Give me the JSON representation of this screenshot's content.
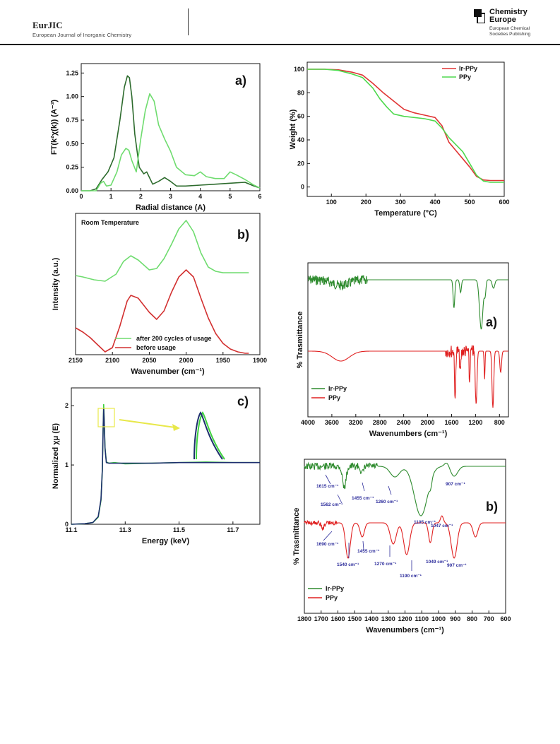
{
  "header": {
    "journal_title": "EurJIC",
    "journal_subtitle": "European Journal of Inorganic Chemistry",
    "publisher_name_line1": "Chemistry",
    "publisher_name_line2": "Europe",
    "publisher_sub_line1": "European Chemical",
    "publisher_sub_line2": "Societies Publishing"
  },
  "colors": {
    "dark_green": "#2d6b2d",
    "light_green": "#6fdc6f",
    "bright_green": "#3fd23f",
    "red": "#d23030",
    "navy": "#1e2f6e",
    "annot_blue": "#2a2a9a",
    "highlight_yellow": "#e8e84a"
  },
  "chart_data": [
    {
      "id": "exafs",
      "type": "line",
      "panel_label": "a)",
      "xlabel": "Radial distance (A)",
      "ylabel": "FT(k²χ(k)) (A⁻³)",
      "xlim": [
        0,
        6
      ],
      "ylim": [
        0,
        1.35
      ],
      "xticks": [
        0,
        1,
        2,
        3,
        4,
        5,
        6
      ],
      "yticks": [
        0.0,
        0.25,
        0.5,
        0.75,
        1.0,
        1.25
      ],
      "ytick_labels": [
        "0.00",
        "0.25",
        "0.50",
        "0.75",
        "1.00",
        "1.25"
      ],
      "series": [
        {
          "color": "#2d6b2d",
          "x": [
            0,
            0.3,
            0.5,
            0.7,
            0.9,
            1.1,
            1.3,
            1.45,
            1.55,
            1.62,
            1.7,
            1.8,
            1.95,
            2.1,
            2.2,
            2.4,
            2.6,
            2.8,
            3.0,
            3.2,
            3.5,
            4.0,
            4.5,
            5.0,
            5.5,
            5.8,
            6.0
          ],
          "y": [
            0,
            0,
            0.02,
            0.12,
            0.2,
            0.35,
            0.75,
            1.1,
            1.22,
            1.2,
            1.0,
            0.6,
            0.25,
            0.18,
            0.2,
            0.07,
            0.1,
            0.14,
            0.1,
            0.05,
            0.05,
            0.06,
            0.07,
            0.08,
            0.09,
            0.05,
            0.03
          ]
        },
        {
          "color": "#6fdc6f",
          "x": [
            0,
            0.5,
            0.65,
            0.75,
            0.85,
            1.0,
            1.2,
            1.35,
            1.5,
            1.6,
            1.7,
            1.85,
            2.0,
            2.15,
            2.3,
            2.45,
            2.6,
            2.8,
            3.0,
            3.2,
            3.5,
            3.8,
            4.0,
            4.2,
            4.5,
            4.8,
            5.0,
            5.2,
            5.5,
            5.8,
            6.0
          ],
          "y": [
            0,
            0,
            0.08,
            0.1,
            0.05,
            0.06,
            0.2,
            0.38,
            0.45,
            0.43,
            0.32,
            0.2,
            0.55,
            0.85,
            1.03,
            0.95,
            0.7,
            0.55,
            0.42,
            0.25,
            0.17,
            0.16,
            0.2,
            0.15,
            0.13,
            0.13,
            0.2,
            0.17,
            0.12,
            0.06,
            0.03
          ]
        }
      ]
    },
    {
      "id": "ir",
      "type": "line",
      "panel_label": "b)",
      "corner_text": "Room Temperature",
      "xlabel": "Wavenumber (cm⁻¹)",
      "ylabel": "Intensity (a.u.)",
      "xlim": [
        2150,
        1900
      ],
      "ylim": [
        0,
        1
      ],
      "xticks": [
        2150,
        2100,
        2050,
        2000,
        1950,
        1900
      ],
      "series": [
        {
          "name": "after 200 cycles of usage",
          "color": "#6fdc6f",
          "x": [
            2150,
            2140,
            2125,
            2110,
            2095,
            2085,
            2075,
            2065,
            2050,
            2040,
            2030,
            2020,
            2010,
            2000,
            1990,
            1980,
            1970,
            1960,
            1950,
            1935,
            1915
          ],
          "y": [
            0.56,
            0.55,
            0.53,
            0.52,
            0.57,
            0.66,
            0.7,
            0.67,
            0.6,
            0.61,
            0.68,
            0.78,
            0.89,
            0.95,
            0.87,
            0.72,
            0.62,
            0.59,
            0.58,
            0.58,
            0.58
          ]
        },
        {
          "name": "before usage",
          "color": "#d23030",
          "x": [
            2150,
            2140,
            2130,
            2120,
            2110,
            2100,
            2090,
            2080,
            2075,
            2065,
            2050,
            2040,
            2030,
            2020,
            2010,
            2000,
            1990,
            1980,
            1970,
            1960,
            1950,
            1940,
            1930,
            1920,
            1915
          ],
          "y": [
            0.19,
            0.16,
            0.12,
            0.07,
            0.02,
            0.05,
            0.2,
            0.38,
            0.42,
            0.4,
            0.3,
            0.25,
            0.31,
            0.44,
            0.55,
            0.6,
            0.55,
            0.4,
            0.26,
            0.15,
            0.08,
            0.04,
            0.02,
            0.01,
            0.01
          ]
        }
      ]
    },
    {
      "id": "xanes",
      "type": "line",
      "panel_label": "c)",
      "xlabel": "Energy (keV)",
      "ylabel": "Normalized χμ (E)",
      "xlim": [
        11.1,
        11.8
      ],
      "ylim": [
        0,
        2.3
      ],
      "xticks": [
        11.1,
        11.3,
        11.5,
        11.7
      ],
      "yticks": [
        0,
        1,
        2
      ],
      "series": [
        {
          "color": "#3fd23f",
          "x": [
            11.1,
            11.15,
            11.18,
            11.2,
            11.21,
            11.215,
            11.218,
            11.22,
            11.222,
            11.225,
            11.23,
            11.24,
            11.26,
            11.3,
            11.4,
            11.5,
            11.6,
            11.7,
            11.8
          ],
          "y": [
            0,
            0.01,
            0.03,
            0.12,
            0.4,
            0.9,
            1.6,
            2.02,
            1.8,
            1.3,
            1.05,
            1.03,
            1.04,
            1.02,
            1.03,
            1.04,
            1.05,
            1.04,
            1.04
          ]
        },
        {
          "color": "#1e2f6e",
          "x": [
            11.1,
            11.15,
            11.18,
            11.2,
            11.21,
            11.215,
            11.218,
            11.22,
            11.222,
            11.225,
            11.23,
            11.24,
            11.26,
            11.3,
            11.4,
            11.5,
            11.6,
            11.7,
            11.8
          ],
          "y": [
            0,
            0.01,
            0.03,
            0.13,
            0.42,
            0.92,
            1.58,
            1.95,
            1.75,
            1.28,
            1.04,
            1.03,
            1.03,
            1.03,
            1.03,
            1.04,
            1.04,
            1.04,
            1.04
          ]
        }
      ]
    },
    {
      "id": "tga",
      "type": "line",
      "xlabel": "Temperature (°C)",
      "ylabel": "Weight (%)",
      "xlim": [
        30,
        600
      ],
      "ylim": [
        -8,
        106
      ],
      "xticks": [
        100,
        200,
        300,
        400,
        500,
        600
      ],
      "yticks": [
        0,
        20,
        40,
        60,
        80,
        100
      ],
      "series": [
        {
          "name": "Ir-PPy",
          "color": "#e03535",
          "x": [
            30,
            80,
            120,
            160,
            190,
            220,
            250,
            280,
            310,
            340,
            370,
            400,
            420,
            440,
            460,
            480,
            500,
            520,
            540,
            560,
            580,
            600
          ],
          "y": [
            100,
            100,
            99.5,
            97.5,
            95,
            88,
            80,
            73,
            66,
            63,
            61,
            59,
            52,
            38,
            31,
            24,
            17,
            9,
            6,
            5.5,
            5.5,
            5.5
          ]
        },
        {
          "name": "PPy",
          "color": "#4ed94e",
          "x": [
            30,
            80,
            120,
            160,
            190,
            220,
            240,
            260,
            280,
            310,
            340,
            370,
            400,
            420,
            440,
            460,
            480,
            500,
            520,
            540,
            560,
            580,
            600
          ],
          "y": [
            100,
            100,
            99,
            96,
            93,
            84,
            75,
            68,
            62,
            60,
            59,
            58,
            56,
            50,
            42,
            36,
            30,
            20,
            10,
            5,
            4,
            4,
            4
          ]
        }
      ]
    },
    {
      "id": "ftir_a",
      "type": "line",
      "panel_label": "a)",
      "xlabel": "Wavenumbers (cm⁻¹)",
      "ylabel": "% Trasmittance",
      "xlim": [
        4000,
        650
      ],
      "xticks": [
        4000,
        3600,
        3200,
        2800,
        2400,
        2000,
        1600,
        1200,
        800
      ],
      "series": [
        {
          "name": "Ir-PPy",
          "color": "#2e8b2e"
        },
        {
          "name": "PPy",
          "color": "#e02020"
        }
      ]
    },
    {
      "id": "ftir_b",
      "type": "line",
      "panel_label": "b)",
      "xlabel": "Wavenumbers (cm⁻¹)",
      "ylabel": "% Trasmittance",
      "xlim": [
        1800,
        600
      ],
      "xticks": [
        1800,
        1700,
        1600,
        1500,
        1400,
        1300,
        1200,
        1100,
        1000,
        900,
        800,
        700,
        600
      ],
      "series": [
        {
          "name": "Ir-PPy",
          "color": "#2e8b2e"
        },
        {
          "name": "PPy",
          "color": "#e02020"
        }
      ],
      "annotations_irppy": [
        "1615 cm⁻¹",
        "1562 cm⁻¹",
        "1455 cm⁻¹",
        "1260 cm⁻¹",
        "1105 cm⁻¹",
        "1047 cm⁻¹",
        "907 cm⁻¹"
      ],
      "annotations_ppy": [
        "1690 cm⁻¹",
        "1540 cm⁻¹",
        "1455 cm⁻¹",
        "1270 cm⁻¹",
        "1190 cm⁻¹",
        "1049 cm⁻¹",
        "907 cm⁻¹"
      ]
    }
  ]
}
